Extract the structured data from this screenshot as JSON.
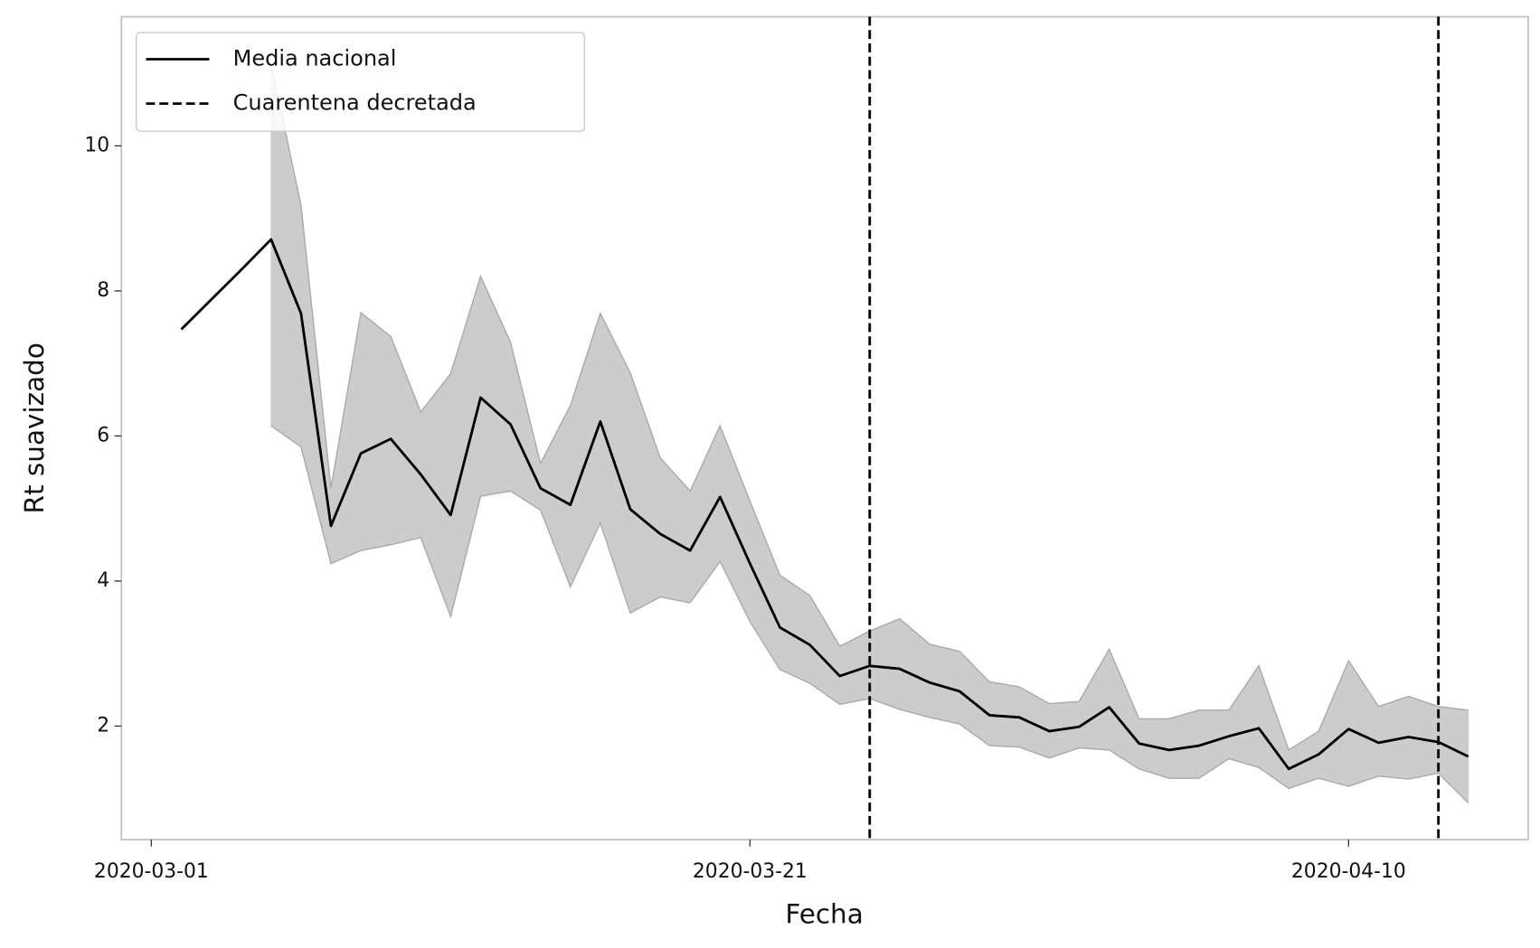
{
  "chart_data": {
    "type": "line",
    "xlabel": "Fecha",
    "ylabel": "Rt suavizado",
    "x": [
      "2020-03-02",
      "2020-03-03",
      "2020-03-04",
      "2020-03-05",
      "2020-03-06",
      "2020-03-07",
      "2020-03-08",
      "2020-03-09",
      "2020-03-10",
      "2020-03-11",
      "2020-03-12",
      "2020-03-13",
      "2020-03-14",
      "2020-03-15",
      "2020-03-16",
      "2020-03-17",
      "2020-03-18",
      "2020-03-19",
      "2020-03-20",
      "2020-03-21",
      "2020-03-22",
      "2020-03-23",
      "2020-03-24",
      "2020-03-25",
      "2020-03-26",
      "2020-03-27",
      "2020-03-28",
      "2020-03-29",
      "2020-03-30",
      "2020-03-31",
      "2020-04-01",
      "2020-04-02",
      "2020-04-03",
      "2020-04-04",
      "2020-04-05",
      "2020-04-06",
      "2020-04-07",
      "2020-04-08",
      "2020-04-09",
      "2020-04-10",
      "2020-04-11",
      "2020-04-12",
      "2020-04-13",
      "2020-04-14"
    ],
    "series": [
      {
        "name": "Media nacional",
        "color": "#000000",
        "values": [
          7.47,
          7.88,
          8.29,
          8.71,
          7.69,
          4.76,
          5.76,
          5.96,
          5.47,
          4.91,
          6.53,
          6.16,
          5.28,
          5.05,
          6.2,
          4.99,
          4.65,
          4.42,
          5.16,
          4.24,
          3.36,
          3.12,
          2.69,
          2.83,
          2.79,
          2.6,
          2.48,
          2.15,
          2.12,
          1.93,
          1.99,
          2.26,
          1.76,
          1.67,
          1.73,
          1.86,
          1.97,
          1.41,
          1.61,
          1.96,
          1.77,
          1.85,
          1.78,
          1.58
        ]
      }
    ],
    "band": {
      "color": "#cccccc",
      "edge_color": "#aaaaaa",
      "upper": [
        null,
        null,
        null,
        11.13,
        9.18,
        5.28,
        7.7,
        7.37,
        6.33,
        6.86,
        8.2,
        7.29,
        5.62,
        6.42,
        7.69,
        6.87,
        5.7,
        5.24,
        6.14,
        5.1,
        4.08,
        3.8,
        3.1,
        3.31,
        3.48,
        3.13,
        3.03,
        2.61,
        2.54,
        2.31,
        2.34,
        3.06,
        2.1,
        2.1,
        2.22,
        2.22,
        2.83,
        1.67,
        1.93,
        2.9,
        2.27,
        2.41,
        2.27,
        2.22
      ],
      "lower": [
        null,
        null,
        null,
        6.14,
        5.85,
        4.24,
        4.42,
        4.5,
        4.6,
        3.51,
        5.17,
        5.24,
        4.98,
        3.92,
        4.8,
        3.56,
        3.78,
        3.7,
        4.27,
        3.44,
        2.78,
        2.59,
        2.3,
        2.38,
        2.23,
        2.12,
        2.03,
        1.73,
        1.71,
        1.56,
        1.7,
        1.67,
        1.41,
        1.28,
        1.28,
        1.55,
        1.43,
        1.14,
        1.28,
        1.17,
        1.31,
        1.27,
        1.35,
        0.94
      ]
    },
    "vlines": {
      "name": "Cuarentena decretada",
      "color": "#000000",
      "style": "dashed",
      "x": [
        "2020-03-25",
        "2020-04-13"
      ]
    },
    "xlim": [
      "2020-02-29",
      "2020-04-16"
    ],
    "xticks": [
      "2020-03-01",
      "2020-03-21",
      "2020-04-10"
    ],
    "ylim": [
      0.435,
      11.78
    ],
    "yticks": [
      2,
      4,
      6,
      8,
      10
    ],
    "legend": "upper left"
  }
}
